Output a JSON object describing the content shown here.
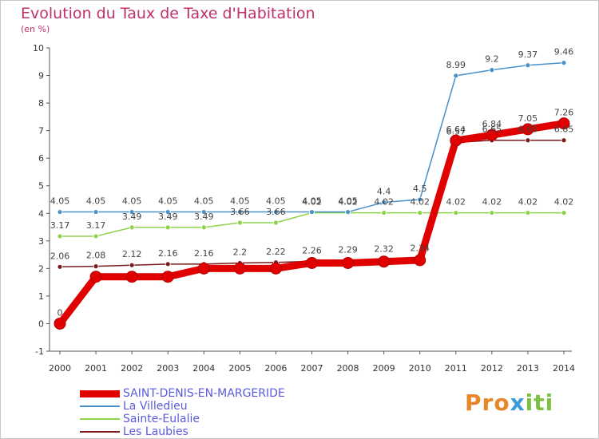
{
  "header": {
    "title": "Evolution du Taux de Taxe d'Habitation",
    "unit": "(en %)"
  },
  "logo": {
    "text": "Proxiti"
  },
  "chart_data": {
    "type": "line",
    "x": [
      2000,
      2001,
      2002,
      2003,
      2004,
      2005,
      2006,
      2007,
      2008,
      2009,
      2010,
      2011,
      2012,
      2013,
      2014
    ],
    "ylim": [
      -1,
      10
    ],
    "yticks": [
      "-1",
      "0",
      "1",
      "2",
      "3",
      "4",
      "5",
      "6",
      "7",
      "8",
      "9",
      "10"
    ],
    "grid": false,
    "legend_position": "bottom-left",
    "series": [
      {
        "name": "SAINT-DENIS-EN-MARGERIDE",
        "color": "#e00000",
        "values": [
          0,
          1.7,
          1.7,
          1.7,
          2.0,
          2.0,
          2.0,
          2.2,
          2.2,
          2.25,
          2.3,
          6.64,
          6.84,
          7.05,
          7.26
        ],
        "labels": [
          "0",
          "",
          "",
          "",
          "",
          "",
          "",
          "",
          "",
          "",
          "",
          "6.64",
          "6.84",
          "7.05",
          "7.26"
        ]
      },
      {
        "name": "La Villedieu",
        "color": "#4a90c8",
        "values": [
          4.05,
          4.05,
          4.05,
          4.05,
          4.05,
          4.05,
          4.05,
          4.05,
          4.05,
          4.4,
          4.5,
          8.99,
          9.2,
          9.37,
          9.46
        ],
        "labels": [
          "4.05",
          "4.05",
          "4.05",
          "4.05",
          "4.05",
          "4.05",
          "4.05",
          "4.05",
          "4.05",
          "4.4",
          "4.5",
          "8.99",
          "9.2",
          "9.37",
          "9.46"
        ]
      },
      {
        "name": "Sainte-Eulalie",
        "color": "#8ed44a",
        "values": [
          3.17,
          3.17,
          3.49,
          3.49,
          3.49,
          3.66,
          3.66,
          4.02,
          4.02,
          4.02,
          4.02,
          4.02,
          4.02,
          4.02,
          4.02
        ],
        "labels": [
          "3.17",
          "3.17",
          "3.49",
          "3.49",
          "3.49",
          "3.66",
          "3.66",
          "4.02",
          "4.02",
          "4.02",
          "4.02",
          "4.02",
          "4.02",
          "4.02",
          "4.02"
        ]
      },
      {
        "name": "Les Laubies",
        "color": "#7a1a1a",
        "values": [
          2.06,
          2.08,
          2.12,
          2.16,
          2.16,
          2.2,
          2.22,
          2.26,
          2.29,
          2.32,
          2.34,
          6.57,
          6.65,
          6.65,
          6.65
        ],
        "labels": [
          "2.06",
          "2.08",
          "2.12",
          "2.16",
          "2.16",
          "2.2",
          "2.22",
          "2.26",
          "2.29",
          "2.32",
          "2.34",
          "6.57",
          "6.65",
          "6.65",
          "6.65"
        ]
      }
    ]
  }
}
